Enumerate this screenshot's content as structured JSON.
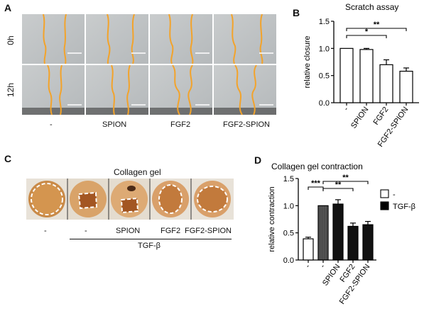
{
  "panels": {
    "A": {
      "letter": "A",
      "rows": [
        "0h",
        "12h"
      ],
      "columns": [
        "-",
        "SPION",
        "FGF2",
        "FGF2-SPION"
      ]
    },
    "B": {
      "letter": "B"
    },
    "C": {
      "letter": "C",
      "title": "Collagen gel",
      "columns": [
        "-",
        "-",
        "SPION",
        "FGF2",
        "FGF2-SPION"
      ],
      "treatment_label": "TGF-β"
    },
    "D": {
      "letter": "D"
    }
  },
  "chart_data": [
    {
      "id": "B",
      "type": "bar",
      "title": "Scratch assay",
      "ylabel": "relative closure",
      "xlabel": "",
      "categories": [
        "-",
        "SPION",
        "FGF2",
        "FGF2-SPION"
      ],
      "values": [
        1.0,
        0.98,
        0.7,
        0.58
      ],
      "errors": [
        0.0,
        0.02,
        0.09,
        0.06
      ],
      "ylim": [
        0,
        1.5
      ],
      "yticks": [
        "0.0",
        "0.5",
        "1.0",
        "1.5"
      ],
      "significance": [
        {
          "from": 0,
          "to": 2,
          "label": "*"
        },
        {
          "from": 0,
          "to": 3,
          "label": "**"
        }
      ],
      "colors": {
        "bar": "#ffffff",
        "edge": "#000000"
      }
    },
    {
      "id": "D",
      "type": "bar",
      "title": "Collagen gel contraction",
      "ylabel": "relative contraction",
      "xlabel": "",
      "categories": [
        "-",
        "-",
        "SPION",
        "FGF2",
        "FGF2-SPION"
      ],
      "values": [
        0.39,
        1.0,
        1.03,
        0.62,
        0.65
      ],
      "errors": [
        0.03,
        0.0,
        0.08,
        0.06,
        0.06
      ],
      "groups": [
        "-",
        "TGF-β",
        "TGF-β",
        "TGF-β",
        "TGF-β"
      ],
      "ylim": [
        0,
        1.5
      ],
      "yticks": [
        "0.0",
        "0.5",
        "1.0",
        "1.5"
      ],
      "legend": [
        {
          "name": "-",
          "color": "#ffffff"
        },
        {
          "name": "TGF-β",
          "color": "#000000"
        }
      ],
      "legend_position": "top-right",
      "significance": [
        {
          "from": 0,
          "to": 1,
          "label": "***"
        },
        {
          "from": 1,
          "to": 3,
          "label": "**"
        },
        {
          "from": 1,
          "to": 4,
          "label": "**"
        }
      ],
      "colors": {
        "white_bar": "#ffffff",
        "black_bar": "#111111",
        "tgf_hatched": "#555555"
      }
    }
  ]
}
